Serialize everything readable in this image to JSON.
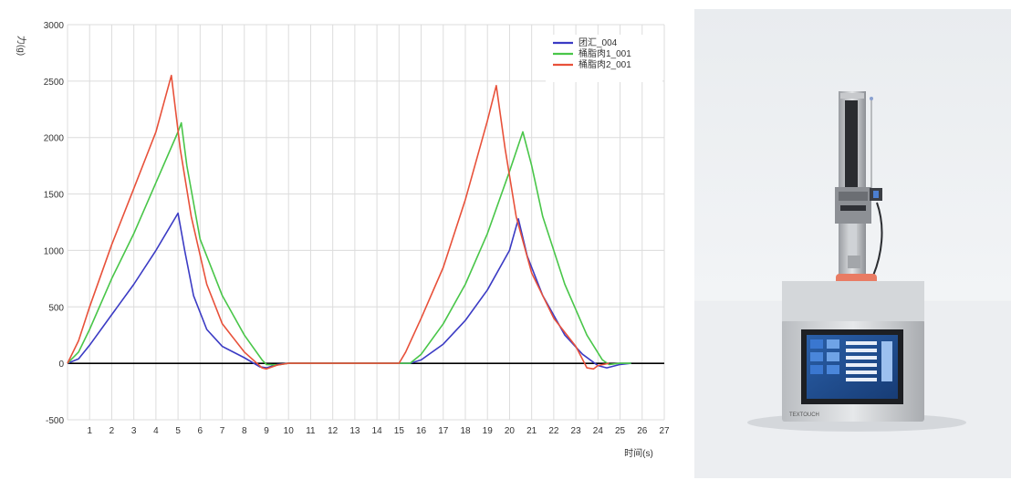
{
  "chart_data": {
    "type": "line",
    "title": "",
    "xlabel": "时间(s)",
    "ylabel": "力(g)",
    "xlim": [
      0,
      27
    ],
    "ylim": [
      -500,
      3000
    ],
    "x_ticks": [
      "1",
      "2",
      "3",
      "4",
      "5",
      "6",
      "7",
      "8",
      "9",
      "10",
      "11",
      "12",
      "13",
      "14",
      "15",
      "16",
      "17",
      "18",
      "19",
      "20",
      "21",
      "22",
      "23",
      "24",
      "25",
      "26",
      "27"
    ],
    "y_ticks": [
      "3000",
      "2500",
      "2000",
      "1500",
      "1000",
      "500",
      "0",
      "-500"
    ],
    "grid": true,
    "legend_position": "top-right",
    "series": [
      {
        "name": "团汇_004",
        "color": "#3b3bc4",
        "points": [
          [
            0,
            0
          ],
          [
            0.5,
            40
          ],
          [
            1,
            160
          ],
          [
            2,
            430
          ],
          [
            3,
            700
          ],
          [
            4,
            1000
          ],
          [
            5,
            1330
          ],
          [
            5.3,
            1000
          ],
          [
            5.7,
            600
          ],
          [
            6.3,
            300
          ],
          [
            7,
            150
          ],
          [
            8,
            50
          ],
          [
            8.7,
            -30
          ],
          [
            9,
            -40
          ],
          [
            9.5,
            -10
          ],
          [
            10,
            0
          ],
          [
            15,
            0
          ],
          [
            15.5,
            0
          ],
          [
            16,
            30
          ],
          [
            17,
            170
          ],
          [
            18,
            380
          ],
          [
            19,
            650
          ],
          [
            20,
            1000
          ],
          [
            20.4,
            1280
          ],
          [
            20.8,
            950
          ],
          [
            21.5,
            600
          ],
          [
            22.5,
            250
          ],
          [
            23.3,
            80
          ],
          [
            24,
            -20
          ],
          [
            24.4,
            -40
          ],
          [
            25,
            -10
          ],
          [
            25.5,
            0
          ]
        ]
      },
      {
        "name": "桶脂肉1_001",
        "color": "#49c649",
        "points": [
          [
            0,
            0
          ],
          [
            0.5,
            100
          ],
          [
            1,
            300
          ],
          [
            2,
            750
          ],
          [
            3,
            1150
          ],
          [
            4,
            1600
          ],
          [
            5,
            2050
          ],
          [
            5.15,
            2130
          ],
          [
            5.4,
            1750
          ],
          [
            6,
            1100
          ],
          [
            7,
            600
          ],
          [
            8,
            250
          ],
          [
            8.8,
            30
          ],
          [
            9,
            -10
          ],
          [
            9.5,
            -15
          ],
          [
            10,
            0
          ],
          [
            15,
            0
          ],
          [
            15.5,
            0
          ],
          [
            16,
            80
          ],
          [
            17,
            350
          ],
          [
            18,
            700
          ],
          [
            19,
            1150
          ],
          [
            20,
            1700
          ],
          [
            20.6,
            2050
          ],
          [
            21,
            1750
          ],
          [
            21.5,
            1300
          ],
          [
            22.5,
            700
          ],
          [
            23.5,
            250
          ],
          [
            24.2,
            30
          ],
          [
            24.5,
            -10
          ],
          [
            25,
            0
          ],
          [
            25.5,
            0
          ]
        ]
      },
      {
        "name": "桶脂肉2_001",
        "color": "#e8513a",
        "points": [
          [
            0,
            0
          ],
          [
            0.5,
            200
          ],
          [
            1,
            500
          ],
          [
            2,
            1050
          ],
          [
            3,
            1550
          ],
          [
            4,
            2050
          ],
          [
            4.7,
            2550
          ],
          [
            5.1,
            1900
          ],
          [
            5.6,
            1300
          ],
          [
            6.3,
            700
          ],
          [
            7,
            350
          ],
          [
            8,
            100
          ],
          [
            8.8,
            -40
          ],
          [
            9,
            -50
          ],
          [
            9.5,
            -15
          ],
          [
            10,
            0
          ],
          [
            15,
            0
          ],
          [
            15.3,
            100
          ],
          [
            16,
            400
          ],
          [
            17,
            850
          ],
          [
            18,
            1450
          ],
          [
            19,
            2150
          ],
          [
            19.4,
            2460
          ],
          [
            19.8,
            1900
          ],
          [
            20.3,
            1300
          ],
          [
            21,
            800
          ],
          [
            22,
            400
          ],
          [
            23,
            150
          ],
          [
            23.5,
            -40
          ],
          [
            23.8,
            -50
          ],
          [
            24,
            -20
          ],
          [
            24.5,
            0
          ]
        ]
      }
    ]
  },
  "photo": {
    "description_icon": "texture-analyzer-instrument",
    "brand": "TEXTOUCH"
  }
}
